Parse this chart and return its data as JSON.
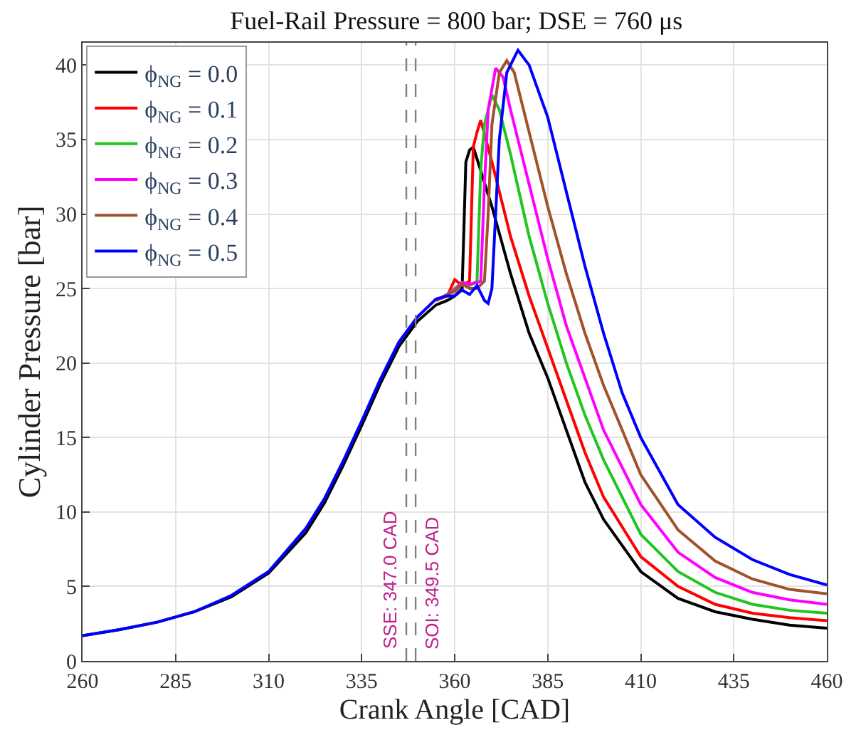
{
  "chart_data": {
    "type": "line",
    "title": "Fuel-Rail Pressure = 800 bar; DSE = 760 μs",
    "xlabel": "Crank Angle [CAD]",
    "ylabel": "Cylinder Pressure [bar]",
    "xlim": [
      260,
      460
    ],
    "xticks": [
      260,
      285,
      310,
      335,
      360,
      385,
      410,
      435,
      460
    ],
    "ylim": [
      0,
      41.5
    ],
    "yticks": [
      0,
      5,
      10,
      15,
      20,
      25,
      30,
      35,
      40
    ],
    "grid": true,
    "legend": "top left",
    "marker": "none",
    "line_style": "solid",
    "series": [
      {
        "name": "ϕ$_{NG}$ = 0.0",
        "color": "#000000",
        "x": [
          260,
          270,
          280,
          290,
          300,
          310,
          320,
          325,
          330,
          335,
          340,
          345,
          350,
          355,
          358,
          360,
          362,
          363,
          364,
          365,
          370,
          375,
          380,
          385,
          390,
          395,
          400,
          410,
          420,
          430,
          440,
          450,
          460
        ],
        "values": [
          1.7,
          2.1,
          2.6,
          3.3,
          4.3,
          5.9,
          8.6,
          10.6,
          13.1,
          15.8,
          18.6,
          21.1,
          22.8,
          23.9,
          24.2,
          24.5,
          25.0,
          33.5,
          34.3,
          34.5,
          30.5,
          26,
          22,
          19,
          15.5,
          12,
          9.5,
          6,
          4.2,
          3.3,
          2.8,
          2.4,
          2.2
        ]
      },
      {
        "name": "ϕ$_{NG}$ = 0.1",
        "color": "#ff0000",
        "x": [
          355,
          358,
          360,
          362,
          364,
          365,
          366,
          367,
          370,
          375,
          380,
          385,
          390,
          395,
          400,
          410,
          420,
          430,
          440,
          450,
          460
        ],
        "values": [
          24.2,
          24.5,
          25.6,
          25.2,
          25.5,
          34.5,
          35.5,
          36.3,
          33.5,
          28.5,
          24.5,
          21,
          17.5,
          14,
          11,
          7.0,
          5.0,
          3.8,
          3.2,
          2.9,
          2.7
        ]
      },
      {
        "name": "ϕ$_{NG}$ = 0.2",
        "color": "#22c422",
        "x": [
          355,
          358,
          360,
          362,
          364,
          366,
          367,
          368,
          370,
          372,
          375,
          380,
          385,
          390,
          395,
          400,
          410,
          420,
          430,
          440,
          450,
          460
        ],
        "values": [
          24.2,
          24.6,
          25.0,
          25.4,
          25.2,
          25.5,
          33,
          36,
          38,
          37,
          34,
          28.5,
          24,
          20,
          16.5,
          13.5,
          8.5,
          6.0,
          4.6,
          3.8,
          3.4,
          3.2
        ]
      },
      {
        "name": "ϕ$_{NG}$ = 0.3",
        "color": "#ff00ff",
        "x": [
          355,
          358,
          360,
          362,
          364,
          366,
          367,
          368,
          369,
          371,
          373,
          375,
          380,
          385,
          390,
          395,
          400,
          410,
          420,
          430,
          440,
          450,
          460
        ],
        "values": [
          24.2,
          24.6,
          24.9,
          25.4,
          25.3,
          25.4,
          25.5,
          32,
          37,
          39.8,
          39.2,
          37,
          32,
          27,
          22.5,
          19,
          15.5,
          10.5,
          7.3,
          5.6,
          4.6,
          4.1,
          3.8
        ]
      },
      {
        "name": "ϕ$_{NG}$ = 0.4",
        "color": "#a0522d",
        "x": [
          355,
          358,
          360,
          362,
          364,
          366,
          368,
          369,
          370,
          372,
          374,
          376,
          380,
          385,
          390,
          395,
          400,
          410,
          420,
          430,
          440,
          450,
          460
        ],
        "values": [
          24.2,
          24.6,
          24.8,
          25.3,
          25.0,
          25.0,
          25.5,
          30,
          36,
          39.5,
          40.3,
          39.5,
          35.5,
          30.5,
          26,
          22,
          18.5,
          12.5,
          8.8,
          6.7,
          5.5,
          4.8,
          4.5
        ]
      },
      {
        "name": "ϕ$_{NG}$ = 0.5",
        "color": "#0000ff",
        "x": [
          260,
          270,
          280,
          290,
          300,
          310,
          320,
          325,
          330,
          335,
          340,
          345,
          350,
          355,
          358,
          360,
          362,
          364,
          366,
          368,
          369,
          370,
          371,
          372,
          374,
          377,
          380,
          385,
          390,
          395,
          400,
          405,
          410,
          420,
          430,
          440,
          450,
          460
        ],
        "values": [
          1.7,
          2.1,
          2.6,
          3.3,
          4.4,
          6.0,
          8.9,
          10.9,
          13.4,
          16.1,
          18.9,
          21.4,
          23.1,
          24.3,
          24.5,
          24.5,
          24.9,
          24.6,
          25.2,
          24.2,
          24.0,
          25,
          30,
          35,
          39.5,
          41,
          40,
          36.5,
          31.5,
          26.5,
          22,
          18,
          15,
          10.5,
          8.3,
          6.8,
          5.8,
          5.1
        ]
      }
    ],
    "ref_lines": [
      {
        "axis": "x",
        "value": 347.0,
        "label": "SSE: 347.0 CAD",
        "color": "#808080",
        "line_style": "dashed"
      },
      {
        "axis": "x",
        "value": 349.5,
        "label": "SOI: 349.5 CAD",
        "color": "#808080",
        "line_style": "dashed"
      }
    ]
  }
}
